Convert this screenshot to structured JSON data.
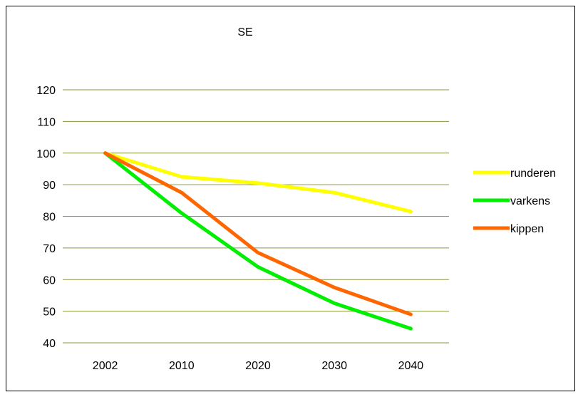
{
  "chart_data": {
    "type": "line",
    "title": "SE",
    "xlabel": "",
    "ylabel": "",
    "categories": [
      "2002",
      "2010",
      "2020",
      "2030",
      "2040"
    ],
    "ylim": [
      40,
      120
    ],
    "yticks": [
      40,
      50,
      60,
      70,
      80,
      90,
      100,
      110,
      120
    ],
    "grid": true,
    "legend_position": "right",
    "series": [
      {
        "name": "runderen",
        "color": "#ffff00",
        "values": [
          100,
          92.5,
          90.5,
          87.5,
          81.5
        ]
      },
      {
        "name": "varkens",
        "color": "#00ee00",
        "values": [
          100,
          81,
          64,
          52.5,
          44.5
        ]
      },
      {
        "name": "kippen",
        "color": "#ff6600",
        "values": [
          100,
          87.5,
          68.5,
          57.5,
          49
        ]
      }
    ],
    "gridline_color": "#8a9a3b"
  }
}
